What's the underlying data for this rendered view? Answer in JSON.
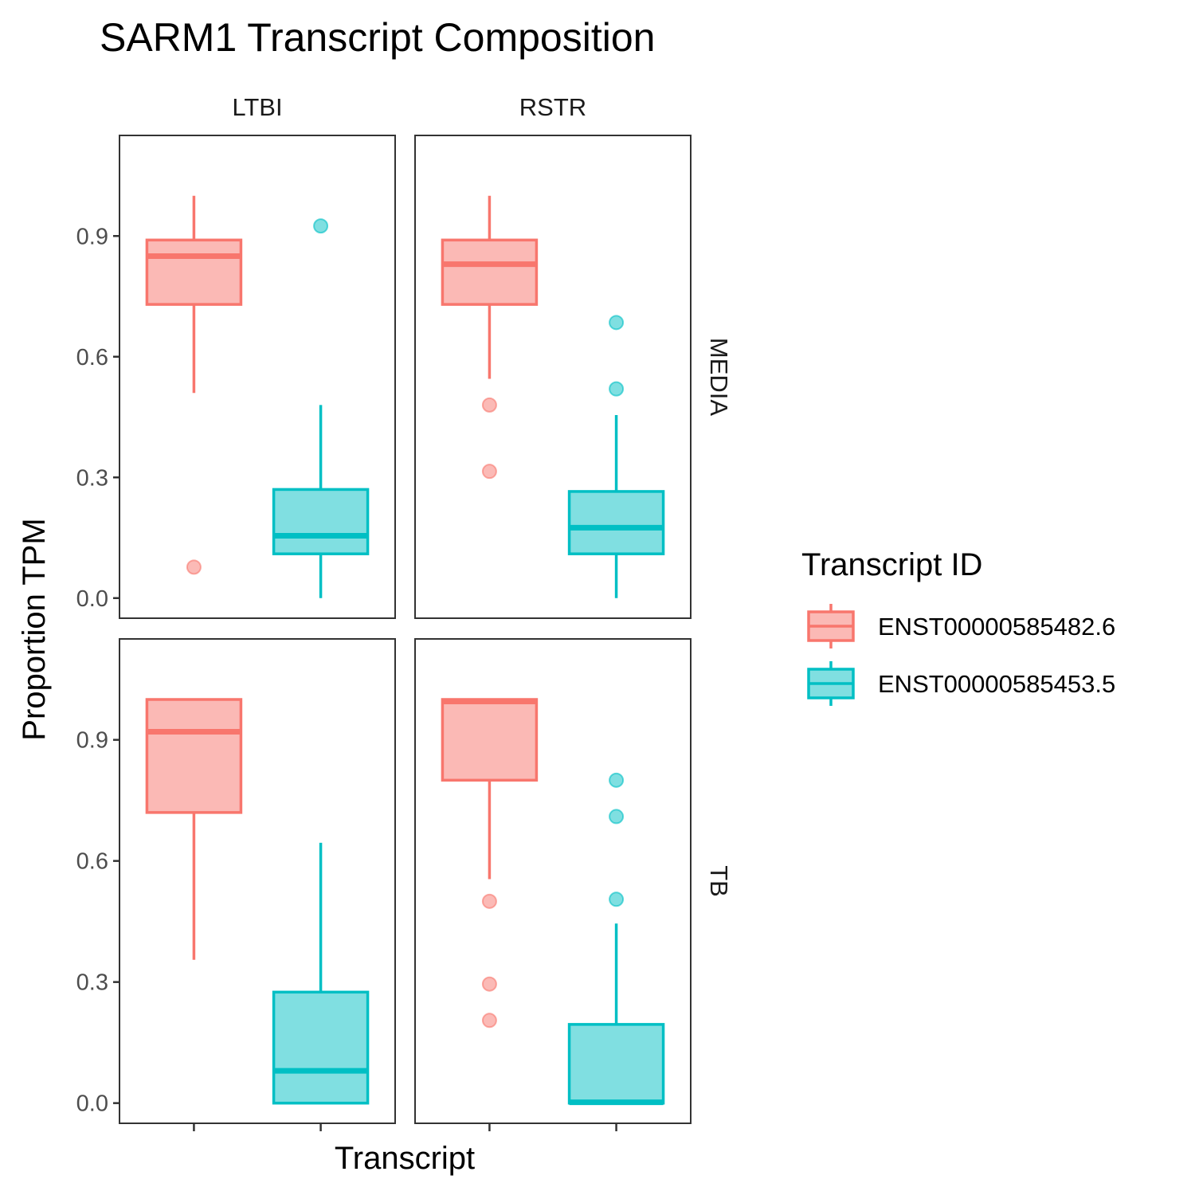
{
  "chart_data": {
    "type": "boxplot",
    "title": "SARM1 Transcript Composition",
    "xlabel": "Transcript",
    "ylabel": "Proportion TPM",
    "ylim": [
      -0.05,
      1.15
    ],
    "yticks": [
      0.0,
      0.3,
      0.6,
      0.9
    ],
    "ytick_labels": [
      "0.0",
      "0.3",
      "0.6",
      "0.9"
    ],
    "facet_cols": [
      "LTBI",
      "RSTR"
    ],
    "facet_rows": [
      "MEDIA",
      "TB"
    ],
    "legend": {
      "title": "Transcript ID",
      "position": "right",
      "entries": [
        {
          "label": "ENST00000585482.6",
          "color": "#F8766D",
          "fill": "#FBB9B5"
        },
        {
          "label": "ENST00000585453.5",
          "color": "#00BFC4",
          "fill": "#80DFE1"
        }
      ]
    },
    "panels": [
      {
        "row": "MEDIA",
        "col": "LTBI",
        "boxes": [
          {
            "series": "ENST00000585482.6",
            "lower_whisker": 0.51,
            "q1": 0.73,
            "median": 0.85,
            "q3": 0.89,
            "upper_whisker": 1.0,
            "outliers": [
              0.077
            ]
          },
          {
            "series": "ENST00000585453.5",
            "lower_whisker": 0.0,
            "q1": 0.11,
            "median": 0.155,
            "q3": 0.27,
            "upper_whisker": 0.48,
            "outliers": [
              0.925
            ]
          }
        ]
      },
      {
        "row": "MEDIA",
        "col": "RSTR",
        "boxes": [
          {
            "series": "ENST00000585482.6",
            "lower_whisker": 0.545,
            "q1": 0.73,
            "median": 0.83,
            "q3": 0.89,
            "upper_whisker": 1.0,
            "outliers": [
              0.48,
              0.315
            ]
          },
          {
            "series": "ENST00000585453.5",
            "lower_whisker": 0.0,
            "q1": 0.11,
            "median": 0.175,
            "q3": 0.265,
            "upper_whisker": 0.455,
            "outliers": [
              0.685,
              0.52
            ]
          }
        ]
      },
      {
        "row": "TB",
        "col": "LTBI",
        "boxes": [
          {
            "series": "ENST00000585482.6",
            "lower_whisker": 0.355,
            "q1": 0.72,
            "median": 0.92,
            "q3": 1.0,
            "upper_whisker": 1.0,
            "outliers": []
          },
          {
            "series": "ENST00000585453.5",
            "lower_whisker": 0.0,
            "q1": 0.0,
            "median": 0.08,
            "q3": 0.275,
            "upper_whisker": 0.645,
            "outliers": []
          }
        ]
      },
      {
        "row": "TB",
        "col": "RSTR",
        "boxes": [
          {
            "series": "ENST00000585482.6",
            "lower_whisker": 0.555,
            "q1": 0.8,
            "median": 0.995,
            "q3": 1.0,
            "upper_whisker": 1.0,
            "outliers": [
              0.5,
              0.295,
              0.205
            ]
          },
          {
            "series": "ENST00000585453.5",
            "lower_whisker": 0.0,
            "q1": 0.0,
            "median": 0.002,
            "q3": 0.195,
            "upper_whisker": 0.445,
            "outliers": [
              0.8,
              0.71,
              0.505
            ]
          }
        ]
      }
    ]
  }
}
